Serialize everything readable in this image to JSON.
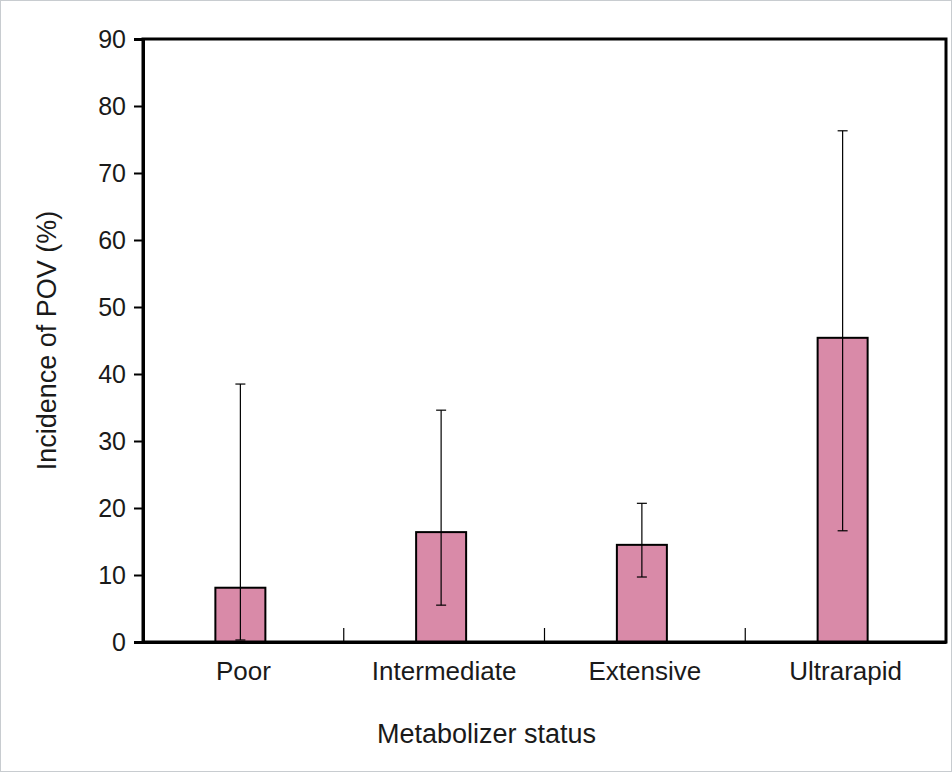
{
  "chart_data": {
    "type": "bar",
    "x_label": "Metabolizer status",
    "y_label": "Incidence of POV (%)",
    "categories": [
      "Poor",
      "Intermediate",
      "Extensive",
      "Ultrarapid"
    ],
    "values": [
      8.1,
      16.4,
      14.5,
      45.4
    ],
    "ci_lower": [
      0.3,
      5.5,
      9.7,
      16.6
    ],
    "ci_upper": [
      38.5,
      34.6,
      20.7,
      76.3
    ],
    "color": "#d98aa8",
    "ylim": [
      0,
      90
    ],
    "yticks": [
      0,
      10,
      20,
      30,
      40,
      50,
      60,
      70,
      80,
      90
    ],
    "grid": false
  }
}
